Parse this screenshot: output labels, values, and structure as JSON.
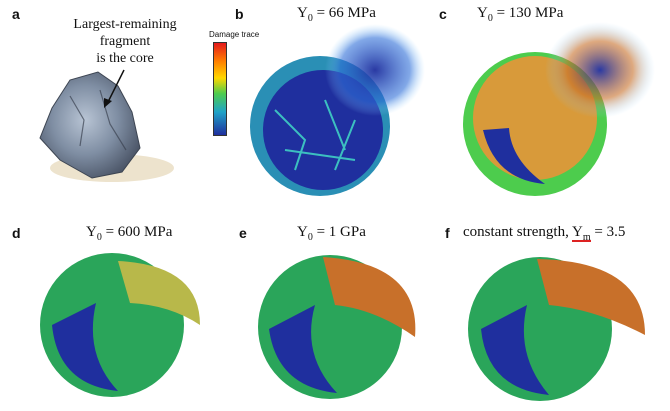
{
  "panels": {
    "a": {
      "letter": "a",
      "label_lines": [
        "Largest-remaining",
        "fragment",
        "is the core"
      ]
    },
    "b": {
      "letter": "b",
      "title_prefix": "Y",
      "title_sub": "0",
      "title_suffix": " = 66 MPa"
    },
    "c": {
      "letter": "c",
      "title_prefix": "Y",
      "title_sub": "0",
      "title_suffix": " = 130 MPa"
    },
    "d": {
      "letter": "d",
      "title_prefix": "Y",
      "title_sub": "0",
      "title_suffix": " = 600 MPa"
    },
    "e": {
      "letter": "e",
      "title_prefix": "Y",
      "title_sub": "0",
      "title_suffix": " = 1 GPa"
    },
    "f": {
      "letter": "f",
      "title_prefix": "constant strength, ",
      "title_y": "Y",
      "title_sub": "m",
      "title_suffix": " = 3.5"
    }
  },
  "colorbar": {
    "title": "Damage trace"
  },
  "colors": {
    "intact": "#1f2f9e",
    "low": "#1fa3c8",
    "mid": "#4dcc4d",
    "high": "#ffd700",
    "damaged_orange": "#c8702a",
    "damaged_red": "#e41a1c"
  }
}
